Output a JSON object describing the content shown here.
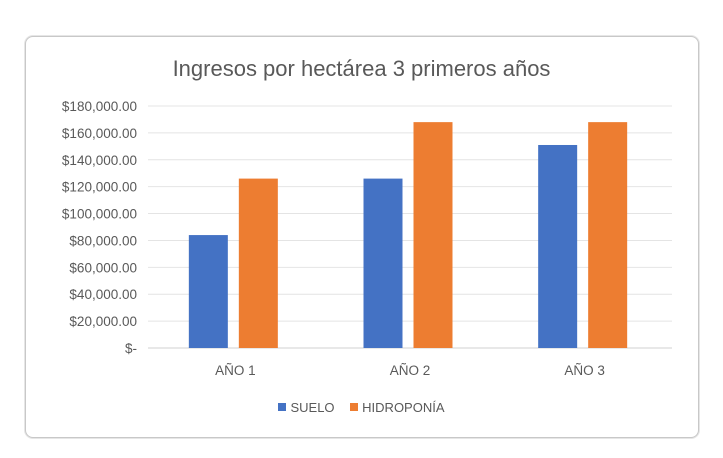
{
  "chart_data": {
    "type": "bar",
    "title": "Ingresos por hectárea 3 primeros años",
    "categories": [
      "AÑO 1",
      "AÑO 2",
      "AÑO 3"
    ],
    "series": [
      {
        "name": "SUELO",
        "color": "#4472C4",
        "values": [
          84000,
          126000,
          151000
        ]
      },
      {
        "name": "HIDROPONÍA",
        "color": "#ED7D31",
        "values": [
          126000,
          168000,
          168000
        ]
      }
    ],
    "ylim": [
      0,
      180000
    ],
    "yticks": [
      0,
      20000,
      40000,
      60000,
      80000,
      100000,
      120000,
      140000,
      160000,
      180000
    ],
    "ytick_labels": [
      "$-",
      "$20,000.00",
      "$40,000.00",
      "$60,000.00",
      "$80,000.00",
      "$100,000.00",
      "$120,000.00",
      "$140,000.00",
      "$160,000.00",
      "$180,000.00"
    ],
    "grid": true,
    "legend": "bottom"
  }
}
